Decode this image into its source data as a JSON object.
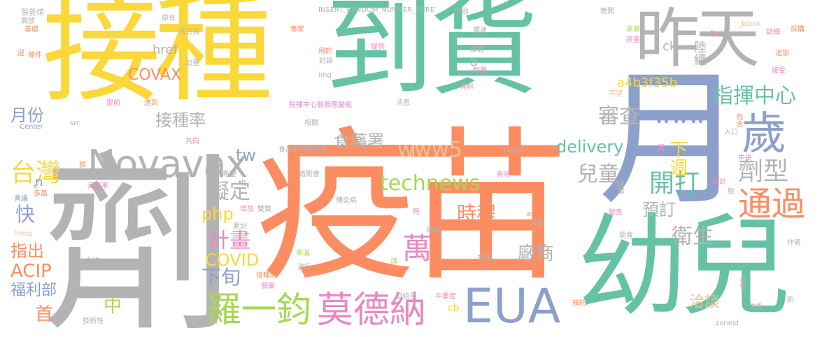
{
  "palette": {
    "yellow": "#fbd83a",
    "orange": "#fc8d62",
    "green": "#66c2a5",
    "blue": "#8da0cb",
    "pink": "#e78ac3",
    "lime": "#a6d854",
    "tan": "#e5c494",
    "gray": "#b3b3b3"
  },
  "words": [
    {
      "text": "接種",
      "color": "yellow"
    },
    {
      "text": "到貨",
      "color": "green"
    },
    {
      "text": "昨天",
      "color": "gray"
    },
    {
      "text": "疫苗",
      "color": "orange"
    },
    {
      "text": "劑",
      "color": "gray"
    },
    {
      "text": "月",
      "color": "blue"
    },
    {
      "text": "幼兒",
      "color": "green"
    },
    {
      "text": "歲",
      "color": "blue"
    },
    {
      "text": "Novavax",
      "color": "gray"
    },
    {
      "text": "EUA",
      "color": "blue"
    },
    {
      "text": "莫德納",
      "color": "pink"
    },
    {
      "text": "羅一鈞",
      "color": "lime"
    },
    {
      "text": "劑型",
      "color": "gray"
    },
    {
      "text": "通過",
      "color": "orange"
    },
    {
      "text": "台灣",
      "color": "yellow"
    },
    {
      "text": "technews",
      "color": "lime"
    },
    {
      "text": "delivery",
      "color": "green"
    },
    {
      "text": "www",
      "color": "blue"
    },
    {
      "text": "www5",
      "color": "tan"
    },
    {
      "text": "萬",
      "color": "pink"
    },
    {
      "text": "開打",
      "color": "green"
    },
    {
      "text": "衛生",
      "color": "gray"
    },
    {
      "text": "洽談",
      "color": "tan"
    },
    {
      "text": "指揮中心",
      "color": "green"
    },
    {
      "text": "接種率",
      "color": "gray"
    },
    {
      "text": "COVAX",
      "color": "orange"
    },
    {
      "text": "ACIP",
      "color": "orange"
    },
    {
      "text": "福利部",
      "color": "blue"
    },
    {
      "text": "兒童",
      "color": "gray"
    },
    {
      "text": "審查",
      "color": "gray"
    },
    {
      "text": "食藥署",
      "color": "gray"
    },
    {
      "text": "tw",
      "color": "blue"
    },
    {
      "text": "php",
      "color": "yellow"
    },
    {
      "text": "計畫",
      "color": "pink"
    },
    {
      "text": "COVID",
      "color": "yellow"
    },
    {
      "text": "擬定",
      "color": "gray"
    },
    {
      "text": "下旬",
      "color": "blue"
    },
    {
      "text": "下週",
      "color": "yellow"
    },
    {
      "text": "預訂",
      "color": "gray"
    },
    {
      "text": "時程",
      "color": "orange"
    },
    {
      "text": "廠商",
      "color": "gray"
    },
    {
      "text": "月份",
      "color": "blue"
    },
    {
      "text": "快",
      "color": "blue"
    },
    {
      "text": "指出",
      "color": "orange"
    },
    {
      "text": "首",
      "color": "orange"
    },
    {
      "text": "中",
      "color": "lime"
    },
    {
      "text": "a4b3f35b",
      "color": "yellow"
    },
    {
      "text": "陸續",
      "color": "gray"
    },
    {
      "text": "href",
      "color": "gray"
    },
    {
      "text": "n",
      "color": "blue"
    },
    {
      "text": "a",
      "color": "gray"
    },
    {
      "text": "ck",
      "color": "gray"
    },
    {
      "text": "amp",
      "color": "orange"
    },
    {
      "text": "cb",
      "color": "yellow"
    },
    {
      "text": "INSERT_RANDOM_NUMBER_HERE`",
      "color": "gray"
    },
    {
      "text": "張荟煊",
      "color": "gray"
    },
    {
      "text": "開放",
      "color": "gray"
    },
    {
      "text": "基礎",
      "color": "orange"
    },
    {
      "text": "沒",
      "color": "orange"
    },
    {
      "text": "條件",
      "color": "orange"
    },
    {
      "text": "原有",
      "color": "gray"
    },
    {
      "text": "蛋白質",
      "color": "gray"
    },
    {
      "text": "幼童",
      "color": "gray"
    },
    {
      "text": "提前",
      "color": "pink"
    },
    {
      "text": "Center",
      "color": "blue"
    },
    {
      "text": "src",
      "color": "gray"
    },
    {
      "text": "送到",
      "color": "orange"
    },
    {
      "text": "共向",
      "color": "pink"
    },
    {
      "text": "專家",
      "color": "orange"
    },
    {
      "text": "用於",
      "color": "orange"
    },
    {
      "text": "討論",
      "color": "gray"
    },
    {
      "text": "img",
      "color": "gray"
    },
    {
      "text": "指揮中心醫療應變組",
      "color": "pink"
    },
    {
      "text": "食品藥物管理署",
      "color": "gray"
    },
    {
      "text": "希望",
      "color": "gray"
    },
    {
      "text": "北",
      "color": "gray"
    },
    {
      "text": "踏剛會",
      "color": "gray"
    },
    {
      "text": "傳染病",
      "color": "gray"
    },
    {
      "text": "提供",
      "color": "pink"
    },
    {
      "text": "資料",
      "color": "pink"
    },
    {
      "text": "消息",
      "color": "gray"
    },
    {
      "text": "相關",
      "color": "gray"
    },
    {
      "text": "防治",
      "color": "gray"
    },
    {
      "text": "儘速",
      "color": "gray"
    },
    {
      "text": "媒體",
      "color": "gray"
    },
    {
      "text": "劑量",
      "color": "pink"
    },
    {
      "text": "晚間",
      "color": "gray"
    },
    {
      "text": "來源",
      "color": "lime"
    },
    {
      "text": "孩童",
      "color": "pink"
    },
    {
      "text": "聯訪",
      "color": "pink"
    },
    {
      "text": "_blank",
      "color": "tan"
    },
    {
      "text": "詳細",
      "color": "pink"
    },
    {
      "text": "採購",
      "color": "orange"
    },
    {
      "text": "追加",
      "color": "orange"
    },
    {
      "text": "可望",
      "color": "tan"
    },
    {
      "text": "接受",
      "color": "pink"
    },
    {
      "text": "包含",
      "color": "orange"
    },
    {
      "text": "入口",
      "color": "gray"
    },
    {
      "text": "target",
      "color": "gray"
    },
    {
      "text": "款",
      "color": "orange"
    },
    {
      "text": "有待",
      "color": "pink"
    },
    {
      "text": "會議",
      "color": "blue"
    },
    {
      "text": "e",
      "color": "green"
    },
    {
      "text": "多萬",
      "color": "orange"
    },
    {
      "text": "涵蓋率",
      "color": "pink"
    },
    {
      "text": "增加",
      "color": "pink"
    },
    {
      "text": "雙雙",
      "color": "gray"
    },
    {
      "text": "時",
      "color": "pink"
    },
    {
      "text": "avw",
      "color": "orange"
    },
    {
      "text": "持續",
      "color": "gray"
    },
    {
      "text": "確認",
      "color": "gray"
    },
    {
      "text": "Press",
      "color": "tan"
    },
    {
      "text": "累計",
      "color": "gray"
    },
    {
      "text": "來滿",
      "color": "lime"
    },
    {
      "text": "流行",
      "color": "gray"
    },
    {
      "text": "請",
      "color": "lime"
    },
    {
      "text": "授權",
      "color": "gray"
    },
    {
      "text": "合約",
      "color": "gray"
    },
    {
      "text": "接種組",
      "color": "orange"
    },
    {
      "text": "個案",
      "color": "pink"
    },
    {
      "text": "副組長",
      "color": "gray"
    },
    {
      "text": "技術性",
      "color": "gray"
    },
    {
      "text": "中重症",
      "color": "pink"
    },
    {
      "text": "供貨",
      "color": "gray"
    },
    {
      "text": "新",
      "color": "gray"
    },
    {
      "text": "zoneid",
      "color": "gray"
    },
    {
      "text": "統計",
      "color": "pink"
    },
    {
      "text": "疫情",
      "color": "gray"
    },
    {
      "text": "緊急",
      "color": "pink"
    },
    {
      "text": "開會",
      "color": "gray"
    },
    {
      "text": "作者",
      "color": "gray"
    },
    {
      "text": "預防",
      "color": "orange"
    },
    {
      "text": "中央",
      "color": "pink"
    },
    {
      "text": "脫",
      "color": "gray"
    },
    {
      "text": "揮鎮",
      "color": "gray"
    },
    {
      "text": "團",
      "color": "pink"
    }
  ]
}
